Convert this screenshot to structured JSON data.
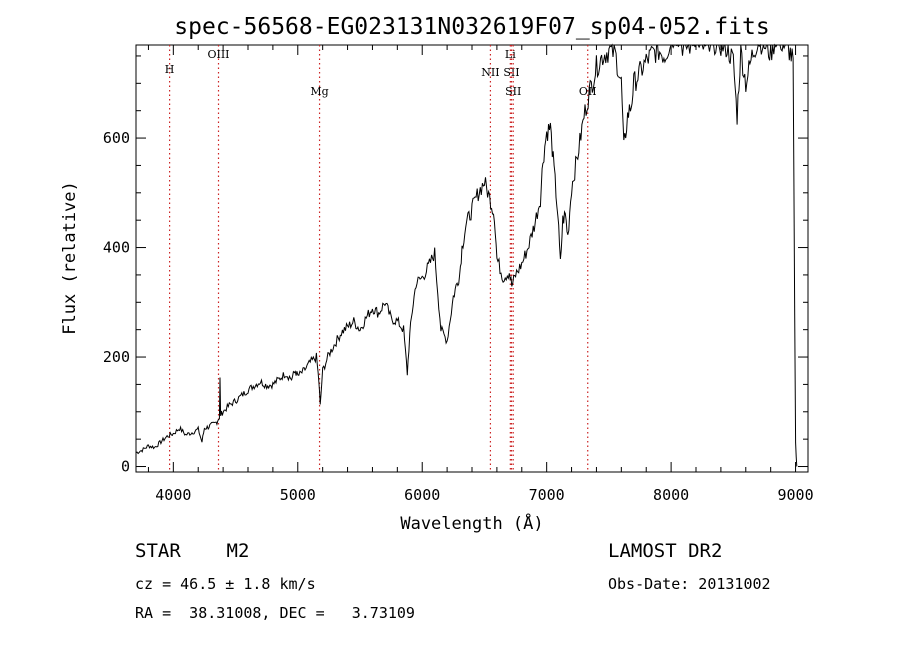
{
  "chart_data": {
    "type": "line",
    "title": "spec-56568-EG023131N032619F07_sp04-052.fits",
    "xlabel": "Wavelength (Å)",
    "ylabel": "Flux (relative)",
    "xlim": [
      3700,
      9100
    ],
    "ylim": [
      -10,
      770
    ],
    "xticks": [
      4000,
      5000,
      6000,
      7000,
      8000,
      9000
    ],
    "yticks": [
      0,
      200,
      400,
      600
    ],
    "series": [
      {
        "color": "#000000",
        "x": [
          3700,
          3750,
          3800,
          3850,
          3900,
          3950,
          4000,
          4050,
          4100,
          4150,
          4200,
          4230,
          4250,
          4280,
          4300,
          4330,
          4350,
          4370,
          4375,
          4380,
          4400,
          4450,
          4500,
          4550,
          4600,
          4650,
          4700,
          4750,
          4800,
          4850,
          4900,
          4950,
          4980,
          5000,
          5050,
          5100,
          5150,
          5170,
          5180,
          5200,
          5250,
          5300,
          5350,
          5400,
          5450,
          5500,
          5550,
          5600,
          5650,
          5700,
          5750,
          5800,
          5850,
          5880,
          5900,
          5920,
          5950,
          6000,
          6050,
          6100,
          6150,
          6200,
          6250,
          6280,
          6300,
          6320,
          6350,
          6400,
          6450,
          6500,
          6550,
          6580,
          6600,
          6650,
          6700,
          6720,
          6750,
          6800,
          6850,
          6900,
          6950,
          6970,
          7000,
          7030,
          7060,
          7090,
          7110,
          7130,
          7150,
          7170,
          7200,
          7250,
          7300,
          7350,
          7400,
          7450,
          7500,
          7550,
          7600,
          7620,
          7650,
          7680,
          7700,
          7750,
          7800,
          7850,
          7900,
          7950,
          8000,
          8050,
          8100,
          8150,
          8200,
          8250,
          8300,
          8350,
          8400,
          8450,
          8500,
          8530,
          8560,
          8600,
          8650,
          8700,
          8750,
          8800,
          8850,
          8900,
          8950,
          8980,
          9000,
          9010
        ],
        "y": [
          25,
          30,
          38,
          35,
          45,
          55,
          60,
          70,
          58,
          62,
          68,
          45,
          70,
          72,
          75,
          78,
          82,
          90,
          160,
          95,
          100,
          112,
          120,
          130,
          140,
          148,
          155,
          148,
          150,
          160,
          170,
          160,
          175,
          165,
          175,
          190,
          200,
          155,
          110,
          175,
          205,
          225,
          245,
          255,
          265,
          250,
          272,
          290,
          280,
          300,
          270,
          265,
          250,
          170,
          240,
          285,
          335,
          345,
          365,
          390,
          250,
          230,
          310,
          335,
          350,
          400,
          440,
          470,
          500,
          520,
          485,
          460,
          380,
          345,
          355,
          330,
          350,
          370,
          400,
          440,
          490,
          560,
          610,
          620,
          540,
          460,
          370,
          450,
          460,
          420,
          510,
          570,
          640,
          690,
          730,
          750,
          760,
          755,
          700,
          580,
          640,
          660,
          700,
          720,
          740,
          755,
          760,
          750,
          780,
          790,
          765,
          770,
          790,
          770,
          760,
          775,
          770,
          765,
          740,
          640,
          760,
          700,
          750,
          780,
          770,
          755,
          790,
          770,
          760,
          740,
          40,
          0
        ]
      }
    ],
    "annotations": [
      {
        "label": "H",
        "x": 3970
      },
      {
        "label": "OIII",
        "x": 4363
      },
      {
        "label": "Mg",
        "x": 5175
      },
      {
        "label": "NII",
        "x": 6548
      },
      {
        "label": "Li",
        "x": 6708
      },
      {
        "label": "SII",
        "x": 6717
      },
      {
        "label": "SII",
        "x": 6731
      },
      {
        "label": "OII",
        "x": 7330
      }
    ]
  },
  "footer": {
    "class_label": "STAR    M2",
    "survey": "LAMOST DR2",
    "velocity": "cz = 46.5 ± 1.8 km/s",
    "obs_date": "Obs-Date: 20131002",
    "coords": "RA =  38.31008, DEC =   3.73109"
  }
}
